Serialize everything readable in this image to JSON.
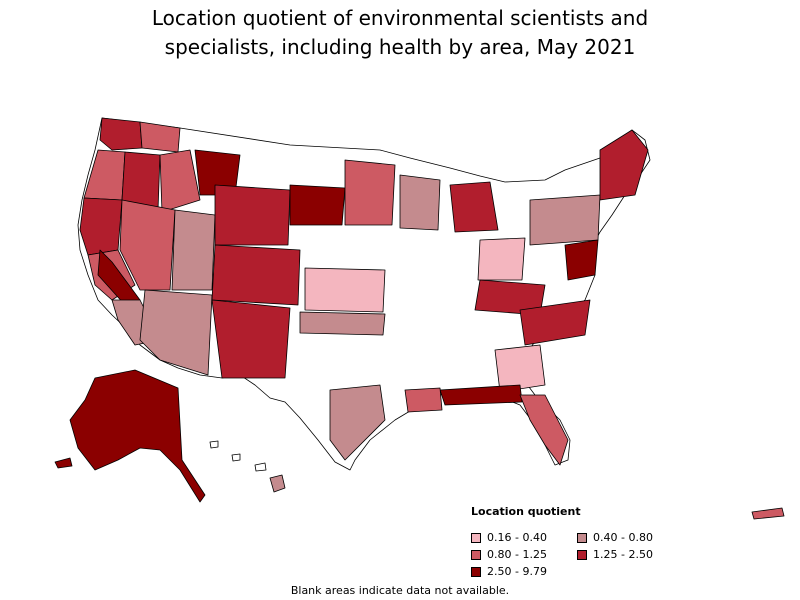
{
  "title_line1": "Location quotient of environmental scientists and",
  "title_line2": "specialists, including health by area, May 2021",
  "legend": {
    "title": "Location quotient",
    "items": [
      {
        "label": "0.16 - 0.40",
        "color": "#f4b6bf"
      },
      {
        "label": "0.40 - 0.80",
        "color": "#c48b8e"
      },
      {
        "label": "0.80 - 1.25",
        "color": "#cd5a63"
      },
      {
        "label": "1.25 - 2.50",
        "color": "#b11e2d"
      },
      {
        "label": "2.50 - 9.79",
        "color": "#8b0000"
      }
    ]
  },
  "note": "Blank areas indicate data not available.",
  "no_data_color": "#ffffff",
  "border_color": "#000000"
}
